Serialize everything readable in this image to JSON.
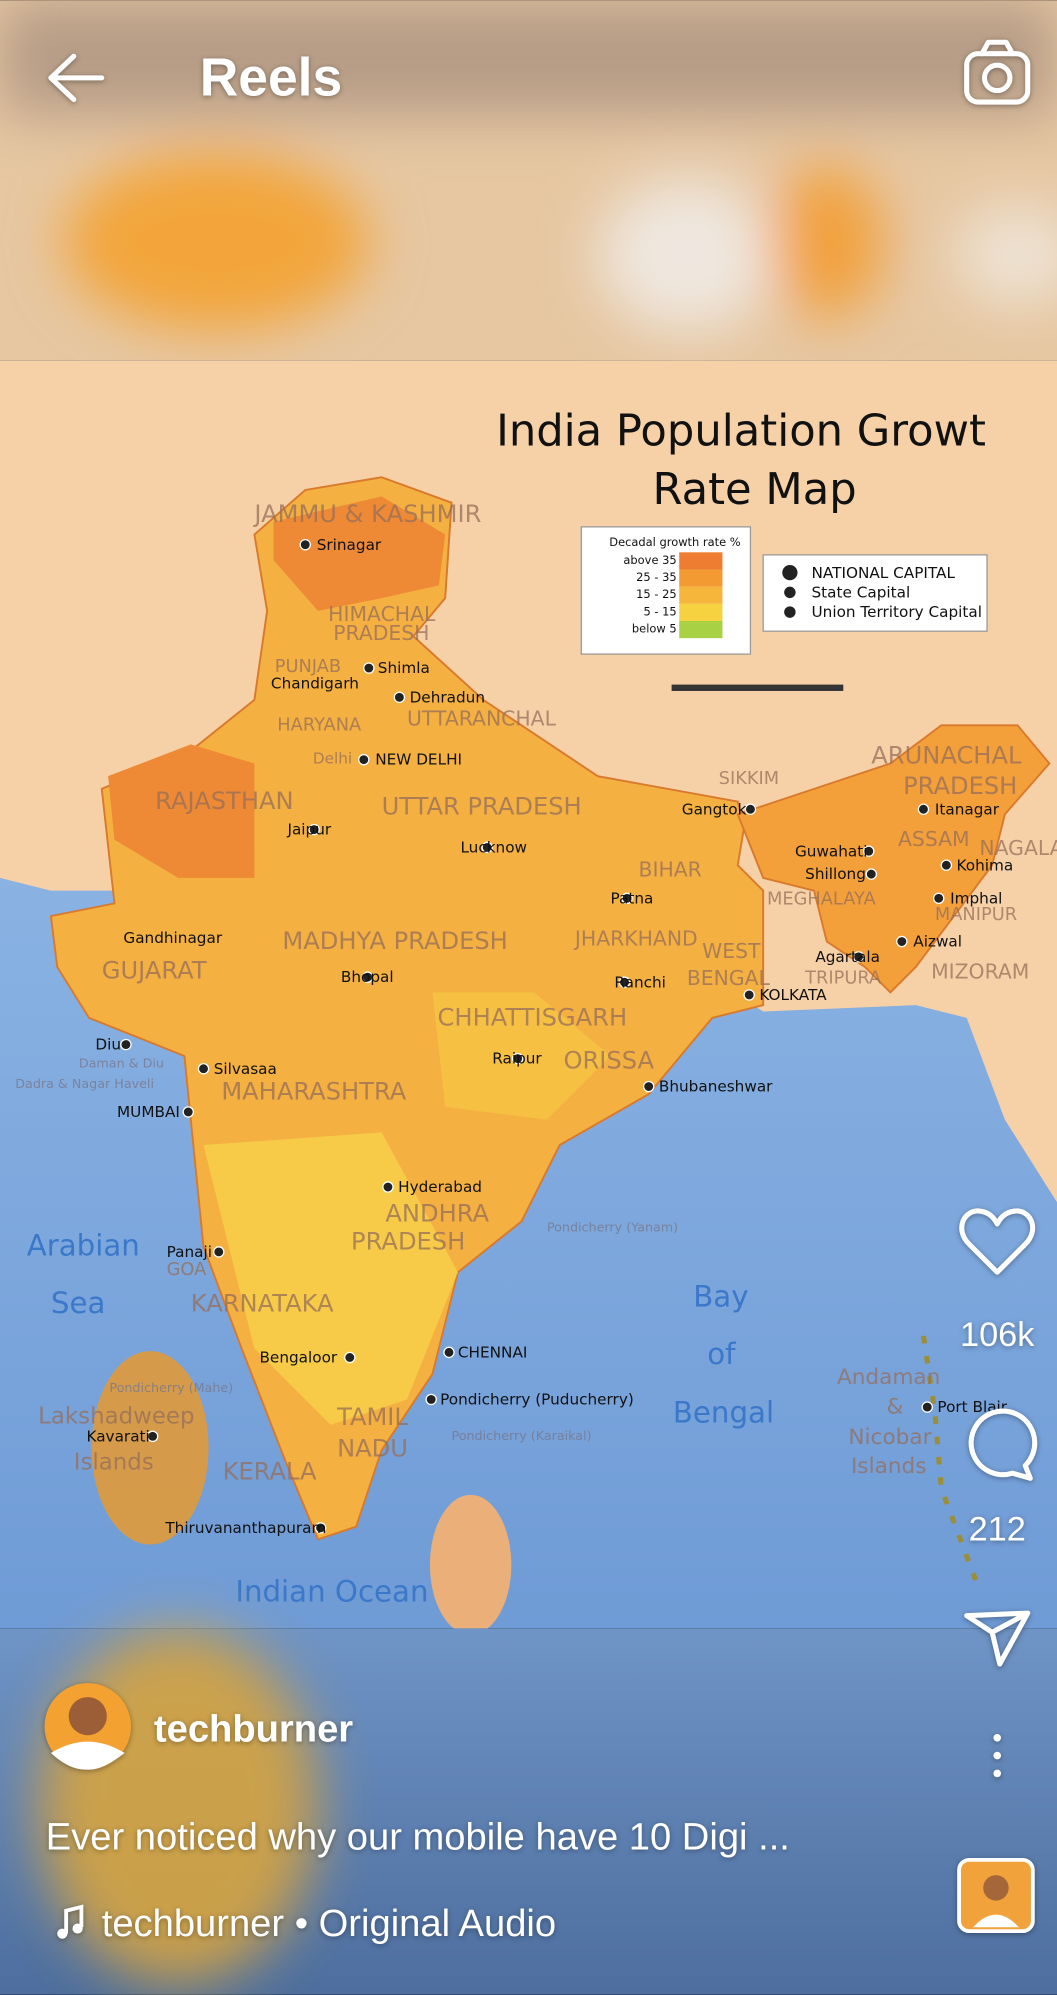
{
  "header": {
    "title": "Reels"
  },
  "map": {
    "title_lines": [
      "India Population Growt",
      "Rate Map"
    ],
    "legend": {
      "title": "Decadal growth rate %",
      "items": [
        "above 35",
        "25 - 35",
        "15 - 25",
        "5 - 15",
        "below 5"
      ]
    },
    "symbols": [
      "NATIONAL CAPITAL",
      "State Capital",
      "Union Territory Capital"
    ],
    "cities": [
      "Srinagar",
      "Shimla",
      "Chandigarh",
      "Dehradun",
      "NEW DELHI",
      "Jaipur",
      "Lucknow",
      "Gangtok",
      "Itanagar",
      "Guwahati",
      "Shillong",
      "Kohima",
      "Imphal",
      "Aizwal",
      "Agartala",
      "Patna",
      "Ranchi",
      "KOLKATA",
      "Gandhinagar",
      "Bhopal",
      "Diu",
      "Daman & Diu",
      "Dadra & Nagar Haveli",
      "Silvasaa",
      "Raipur",
      "Bhubaneshwar",
      "MUMBAI",
      "Hyderabad",
      "Panaji",
      "CHENNAI",
      "Bengaloor",
      "Pondicherry (Puducherry)",
      "Kavarati",
      "Thiruvananthapuram",
      "Port Blair",
      "Pondicherry (Yanam)",
      "Pondicherry (Mahe)",
      "Pondicherry (Karaikal)"
    ],
    "regions": [
      "JAMMU & KASHMIR",
      "HIMACHAL",
      "PRADESH",
      "PUNJAB",
      "HARYANA",
      "UTTARANCHAL",
      "Delhi",
      "RAJASTHAN",
      "UTTAR PRADESH",
      "SIKKIM",
      "ARUNACHAL",
      "PRADESH",
      "ASSAM",
      "NAGALAND",
      "MANIPUR",
      "MEGHALAYA",
      "MIZORAM",
      "TRIPURA",
      "BIHAR",
      "JHARKHAND",
      "WEST",
      "BENGAL",
      "GUJARAT",
      "MADHYA PRADESH",
      "CHHATTISGARH",
      "ORISSA",
      "MAHARASHTRA",
      "ANDHRA",
      "PRADESH",
      "GOA",
      "KARNATAKA",
      "TAMIL",
      "NADU",
      "KERALA",
      "Lakshadweep",
      "Islands",
      "Andaman",
      "&",
      "Nicobar",
      "Islands"
    ],
    "waters": [
      "Arabian",
      "Sea",
      "Bay",
      "of",
      "Bengal",
      "Indian Ocean"
    ]
  },
  "actions": {
    "likes": "106k",
    "comments": "212"
  },
  "post": {
    "username": "techburner",
    "caption": "Ever noticed why our mobile have 10 Digi ...",
    "audio": "techburner • Original Audio"
  }
}
